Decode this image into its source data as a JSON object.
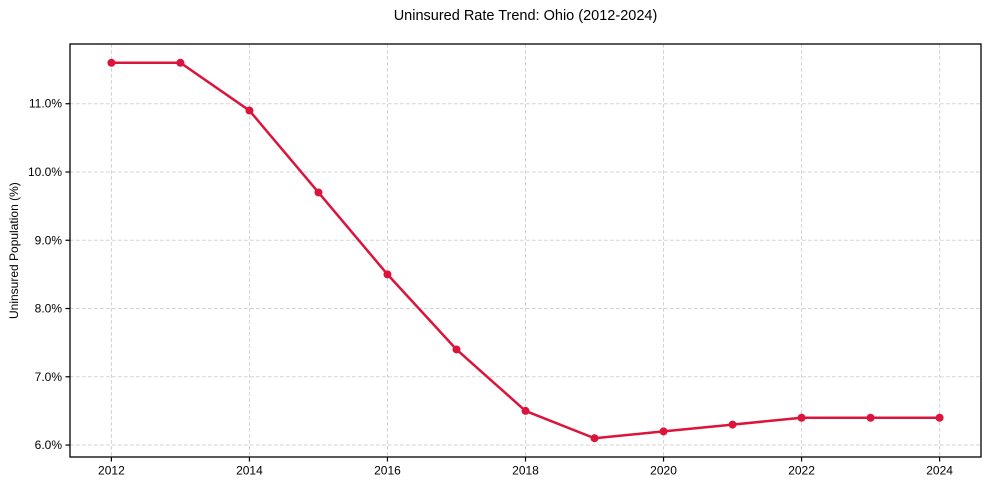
{
  "chart_data": {
    "type": "line",
    "title": "Uninsured Rate Trend: Ohio (2012-2024)",
    "xlabel": "",
    "ylabel": "Uninsured Population (%)",
    "x": [
      2012,
      2013,
      2014,
      2015,
      2016,
      2017,
      2018,
      2019,
      2020,
      2021,
      2022,
      2023,
      2024
    ],
    "values": [
      11.6,
      11.6,
      10.9,
      9.7,
      8.5,
      7.4,
      6.5,
      6.1,
      6.2,
      6.3,
      6.4,
      6.4,
      6.4
    ],
    "xlim": [
      2011.4,
      2024.6
    ],
    "ylim": [
      5.825,
      11.875
    ],
    "x_ticks": [
      2012,
      2014,
      2016,
      2018,
      2020,
      2022,
      2024
    ],
    "y_ticks": [
      6.0,
      7.0,
      8.0,
      9.0,
      10.0,
      11.0
    ],
    "y_tick_suffix": "%",
    "grid": true,
    "grid_style": "dashed",
    "legend": false,
    "marker": "circle",
    "colors": {
      "line": "#dc143c",
      "grid": "#c9c9c9",
      "axis": "#000000",
      "text": "#000000",
      "background": "#ffffff"
    }
  }
}
